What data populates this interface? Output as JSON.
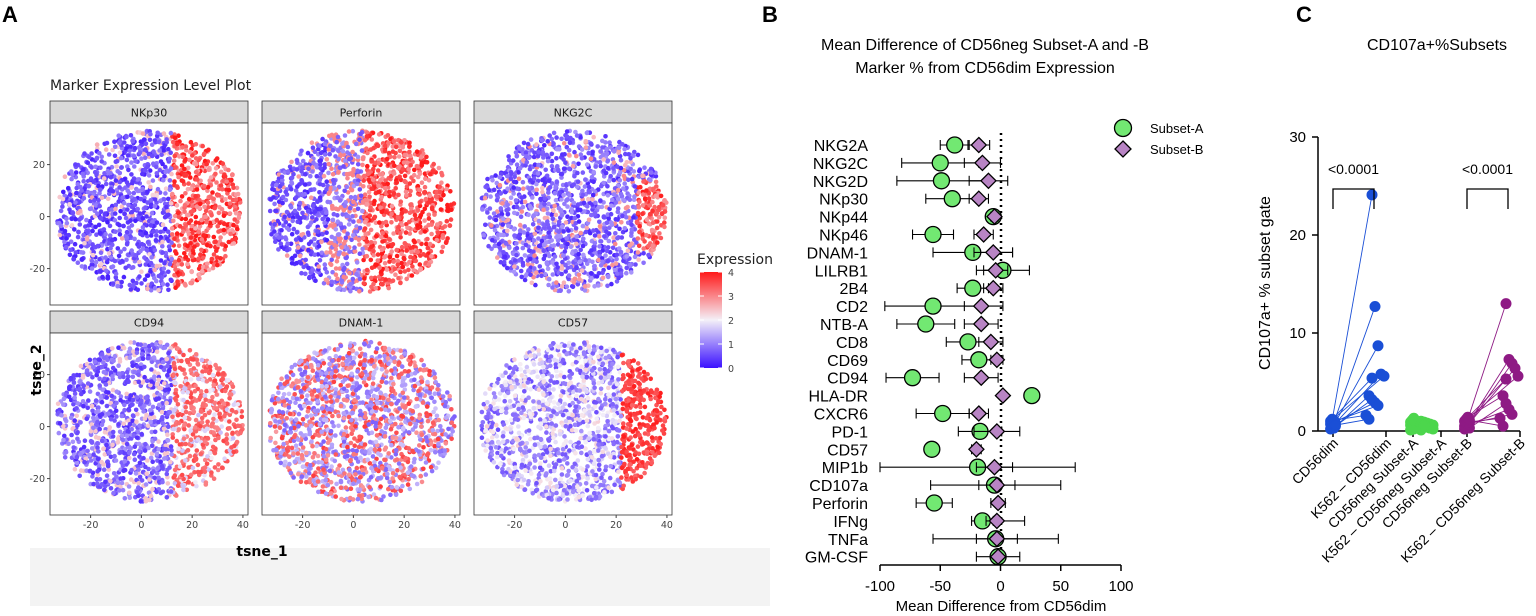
{
  "panel_labels": [
    "A",
    "B",
    "C"
  ],
  "chart_data": [
    {
      "type": "scatter",
      "subtype": "tsne-feature-plot",
      "title": "Marker Expression Level Plot",
      "facets": [
        "NKp30",
        "Perforin",
        "NKG2C",
        "CD94",
        "DNAM-1",
        "CD57"
      ],
      "xlabel": "tsne_1",
      "ylabel": "tsne_2",
      "xticks": [
        -20,
        0,
        20,
        40
      ],
      "yticks": [
        20,
        0,
        -20
      ],
      "xlim": [
        -36,
        42
      ],
      "ylim": [
        -34,
        36
      ],
      "legend_title": "Expression",
      "legend_ticks": [
        4,
        3,
        2,
        1,
        0
      ],
      "color_low": "#3a10ff",
      "color_mid": "#f4f0f8",
      "color_high": "#ff1a1a"
    },
    {
      "type": "dot-errorbar",
      "title_line1": "Mean Difference of CD56neg Subset-A and -B",
      "title_line2": "Marker % from CD56dim Expression",
      "xlabel": "Mean Difference from CD56dim",
      "xticks": [
        -100,
        -50,
        0,
        50,
        100
      ],
      "xlim": [
        -100,
        100
      ],
      "categories": [
        "NKG2A",
        "NKG2C",
        "NKG2D",
        "NKp30",
        "NKp44",
        "NKp46",
        "DNAM-1",
        "LILRB1",
        "2B4",
        "CD2",
        "NTB-A",
        "CD8",
        "CD69",
        "CD94",
        "HLA-DR",
        "CXCR6",
        "PD-1",
        "CD57",
        "MIP1b",
        "CD107a",
        "Perforin",
        "IFNg",
        "TNFa",
        "GM-CSF"
      ],
      "series": [
        {
          "name": "Subset-A",
          "color": "#72e872",
          "mean": [
            -38,
            -50,
            -49,
            -40,
            -6,
            -56,
            -23,
            2,
            -23,
            -56,
            -62,
            -27,
            -18,
            -73,
            26,
            -48,
            -17,
            -57,
            -19,
            -5,
            -55,
            -15,
            -4,
            -2
          ],
          "lo": [
            -50,
            -82,
            -86,
            -62,
            -9,
            -73,
            -56,
            -20,
            -36,
            -96,
            -86,
            -45,
            -32,
            -95,
            22,
            -70,
            -35,
            -62,
            -100,
            -58,
            -70,
            -24,
            -56,
            -4
          ],
          "hi": [
            -26,
            -18,
            -12,
            -18,
            -3,
            -39,
            10,
            24,
            -10,
            -16,
            -38,
            -9,
            -4,
            -51,
            30,
            -26,
            1,
            -52,
            62,
            50,
            -40,
            -6,
            48,
            0
          ]
        },
        {
          "name": "Subset-B",
          "color": "#b884c4",
          "mean": [
            -18,
            -15,
            -10,
            -18,
            -5,
            -14,
            -6,
            -4,
            -6,
            -16,
            -16,
            -8,
            -3,
            -16,
            2,
            -18,
            -3,
            -20,
            -5,
            -3,
            -2,
            -3,
            -3,
            -2
          ],
          "lo": [
            -27,
            -30,
            -26,
            -26,
            -8,
            -22,
            -22,
            -14,
            -14,
            -30,
            -30,
            -18,
            -8,
            -30,
            0,
            -26,
            -22,
            -24,
            -20,
            -18,
            -8,
            -12,
            -20,
            -20
          ],
          "hi": [
            -9,
            0,
            6,
            -10,
            -2,
            -6,
            10,
            6,
            2,
            2,
            -2,
            2,
            2,
            -2,
            4,
            -10,
            16,
            -16,
            10,
            12,
            4,
            20,
            14,
            16
          ]
        }
      ]
    },
    {
      "type": "paired-scatter",
      "title": "CD107a+%Subsets",
      "ylabel": "CD107a+ % subset gate",
      "yticks": [
        0,
        10,
        20,
        30
      ],
      "ylim": [
        0,
        30
      ],
      "categories": [
        "CD56dim",
        "K562 – CD56dim",
        "CD56neg Subset-A",
        "K562 – CD56neg Subset-A",
        "CD56neg Subset-B",
        "K562 – CD56neg Subset-B"
      ],
      "pairs": [
        {
          "name": "CD56dim",
          "color": "#1a4fd6",
          "before": [
            0.2,
            0.4,
            0.6,
            0.8,
            1.0,
            1.2,
            0.3,
            0.5,
            0.7,
            0.9,
            1.1,
            0.6
          ],
          "after": [
            24.1,
            12.7,
            8.7,
            5.8,
            5.6,
            5.4,
            3.6,
            3.2,
            2.9,
            2.6,
            1.6,
            1.2
          ]
        },
        {
          "name": "CD56neg Subset-A",
          "color": "#4cd64c",
          "before": [
            0.1,
            0.3,
            0.5,
            0.7,
            0.9,
            1.1,
            1.3,
            0.4,
            0.6,
            0.8,
            0.2,
            1.0
          ],
          "after": [
            1.0,
            0.9,
            0.8,
            0.7,
            0.6,
            0.6,
            0.5,
            0.4,
            0.3,
            0.2,
            0.1,
            0.5
          ]
        },
        {
          "name": "CD56neg Subset-B",
          "color": "#8e1a84",
          "before": [
            0.2,
            0.4,
            0.6,
            0.8,
            1.0,
            1.2,
            1.4,
            0.3,
            0.5,
            0.7,
            0.9,
            1.1
          ],
          "after": [
            13.0,
            7.3,
            6.9,
            6.4,
            5.6,
            5.3,
            3.6,
            2.8,
            2.2,
            1.7,
            1.3,
            0.5
          ]
        }
      ],
      "comparisons": [
        {
          "label": "<0.0001",
          "from": 0,
          "to": 1
        },
        {
          "label": "<0.0001",
          "from": 4,
          "to": 5
        }
      ]
    }
  ]
}
